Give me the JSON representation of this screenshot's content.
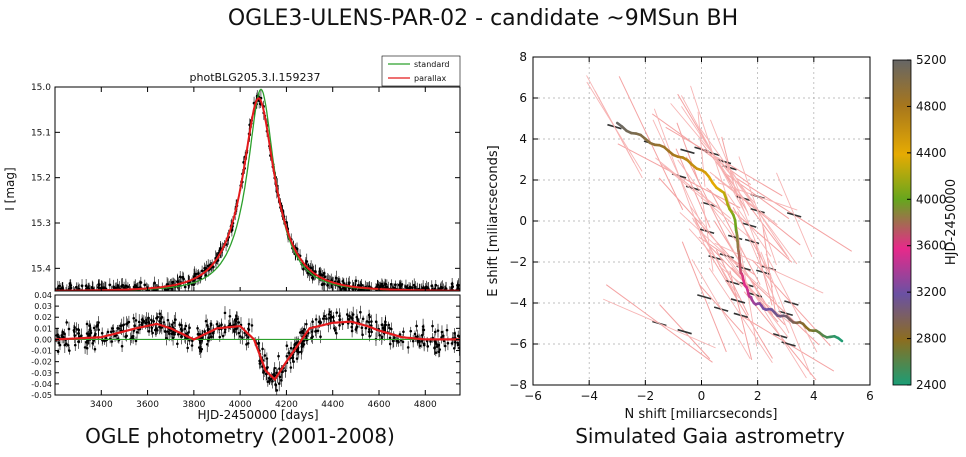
{
  "title": "OGLE3-ULENS-PAR-02 - candidate ~9MSun BH",
  "captions": {
    "left": "OGLE photometry (2001-2008)",
    "right": "Simulated Gaia astrometry"
  },
  "chart_data": [
    {
      "type": "line",
      "panel": "light-curve",
      "title": "photBLG205.3.I.159237",
      "xlabel": "",
      "ylabel": "I [mag]",
      "xlim": [
        3200,
        4950
      ],
      "ylim": [
        15.45,
        15.0
      ],
      "y_inverted": true,
      "yticks": [
        "15.0",
        "15.1",
        "15.2",
        "15.3",
        "15.4"
      ],
      "legend": {
        "placement": "top-right",
        "entries": [
          "standard",
          "parallax"
        ]
      },
      "colors": {
        "standard": "#2ca02c",
        "parallax": "#e31a1c",
        "data": "#000000"
      },
      "series": [
        {
          "name": "standard",
          "model": "paczynski",
          "t0": 4090,
          "tE": 165,
          "u0": 0.35,
          "base": 15.45,
          "fs": 0.9
        },
        {
          "name": "parallax",
          "model": "paczynski+parallax",
          "t0": 4080,
          "tE": 175,
          "u0": 0.4,
          "base": 15.45,
          "fs": 0.9
        }
      ],
      "observations": {
        "x_range": [
          3200,
          4950
        ],
        "error_mag": 0.01
      }
    },
    {
      "type": "line",
      "panel": "residuals",
      "xlabel": "HJD-2450000 [days]",
      "ylabel": "",
      "xlim": [
        3200,
        4950
      ],
      "ylim": [
        -0.05,
        0.04
      ],
      "xticks": [
        3400,
        3600,
        3800,
        4000,
        4200,
        4400,
        4600,
        4800
      ],
      "yticks": [
        "0.04",
        "0.03",
        "0.02",
        "0.01",
        "0.00",
        "-0.01",
        "-0.02",
        "-0.03",
        "-0.04",
        "-0.05"
      ],
      "series": [
        {
          "name": "parallax",
          "x": [
            3200,
            3400,
            3550,
            3640,
            3700,
            3800,
            3900,
            4000,
            4060,
            4110,
            4150,
            4200,
            4300,
            4400,
            4480,
            4550,
            4600,
            4700,
            4800,
            4950
          ],
          "y": [
            0.0,
            0.002,
            0.01,
            0.014,
            0.01,
            0.0,
            0.01,
            0.012,
            0.0,
            -0.028,
            -0.036,
            -0.02,
            0.01,
            0.015,
            0.016,
            0.012,
            0.008,
            0.002,
            0.0,
            0.0
          ]
        },
        {
          "name": "standard",
          "x": [
            3200,
            4950
          ],
          "y": [
            0,
            0
          ]
        }
      ]
    },
    {
      "type": "scatter",
      "panel": "astrometry",
      "xlabel": "N shift [miliarcseconds]",
      "ylabel": "E shift [miliarcseconds]",
      "xlim": [
        -6,
        6
      ],
      "ylim": [
        -8,
        8
      ],
      "xticks": [
        -6,
        -4,
        -2,
        0,
        2,
        4,
        6
      ],
      "yticks": [
        -8,
        -6,
        -4,
        -2,
        0,
        2,
        4,
        6,
        8
      ],
      "grid": true,
      "colorbar": {
        "label": "HJD-2450000",
        "range": [
          2400,
          5200
        ],
        "ticks": [
          2400,
          2800,
          3200,
          3600,
          4000,
          4400,
          4800,
          5200
        ]
      },
      "track": {
        "n": [
          -3.0,
          -2.0,
          -1.0,
          0.0,
          0.8,
          1.2,
          1.3,
          1.4,
          1.6,
          1.8,
          2.2,
          2.8,
          3.5,
          4.2,
          5.0
        ],
        "e": [
          4.7,
          4.0,
          3.3,
          2.5,
          1.3,
          0.0,
          -1.2,
          -2.5,
          -3.3,
          -3.9,
          -4.2,
          -4.6,
          -5.0,
          -5.5,
          -5.8
        ],
        "hjd": [
          5200,
          5000,
          4800,
          4550,
          4300,
          4050,
          3850,
          3700,
          3550,
          3400,
          3250,
          3100,
          2900,
          2650,
          2400
        ]
      },
      "measurements": {
        "n": [
          -3.1,
          -1.8,
          -0.5,
          0.0,
          0.4,
          -0.8,
          1.0,
          1.5,
          2.0,
          3.3,
          -0.3,
          0.3,
          1.2,
          1.8,
          0.9,
          1.5,
          2.2,
          0.5,
          1.6,
          1.9,
          1.1,
          3.0,
          0.1,
          0.7,
          1.3,
          3.2,
          2.4,
          1.4,
          -1.5,
          -0.6,
          2.8,
          3.1,
          0.2,
          1.7,
          2.0,
          0.8
        ],
        "e": [
          4.6,
          3.8,
          3.4,
          3.5,
          3.3,
          2.2,
          2.6,
          1.1,
          1.2,
          0.3,
          1.6,
          0.8,
          -0.8,
          -1.0,
          -1.7,
          -2.3,
          -2.5,
          -1.8,
          -3.1,
          -3.6,
          -3.0,
          -4.5,
          -3.7,
          -4.3,
          -3.9,
          -4.0,
          -2.3,
          -4.6,
          -5.0,
          -5.4,
          -5.6,
          -6.0,
          -0.5,
          -0.2,
          0.5,
          2.9
        ]
      }
    }
  ]
}
